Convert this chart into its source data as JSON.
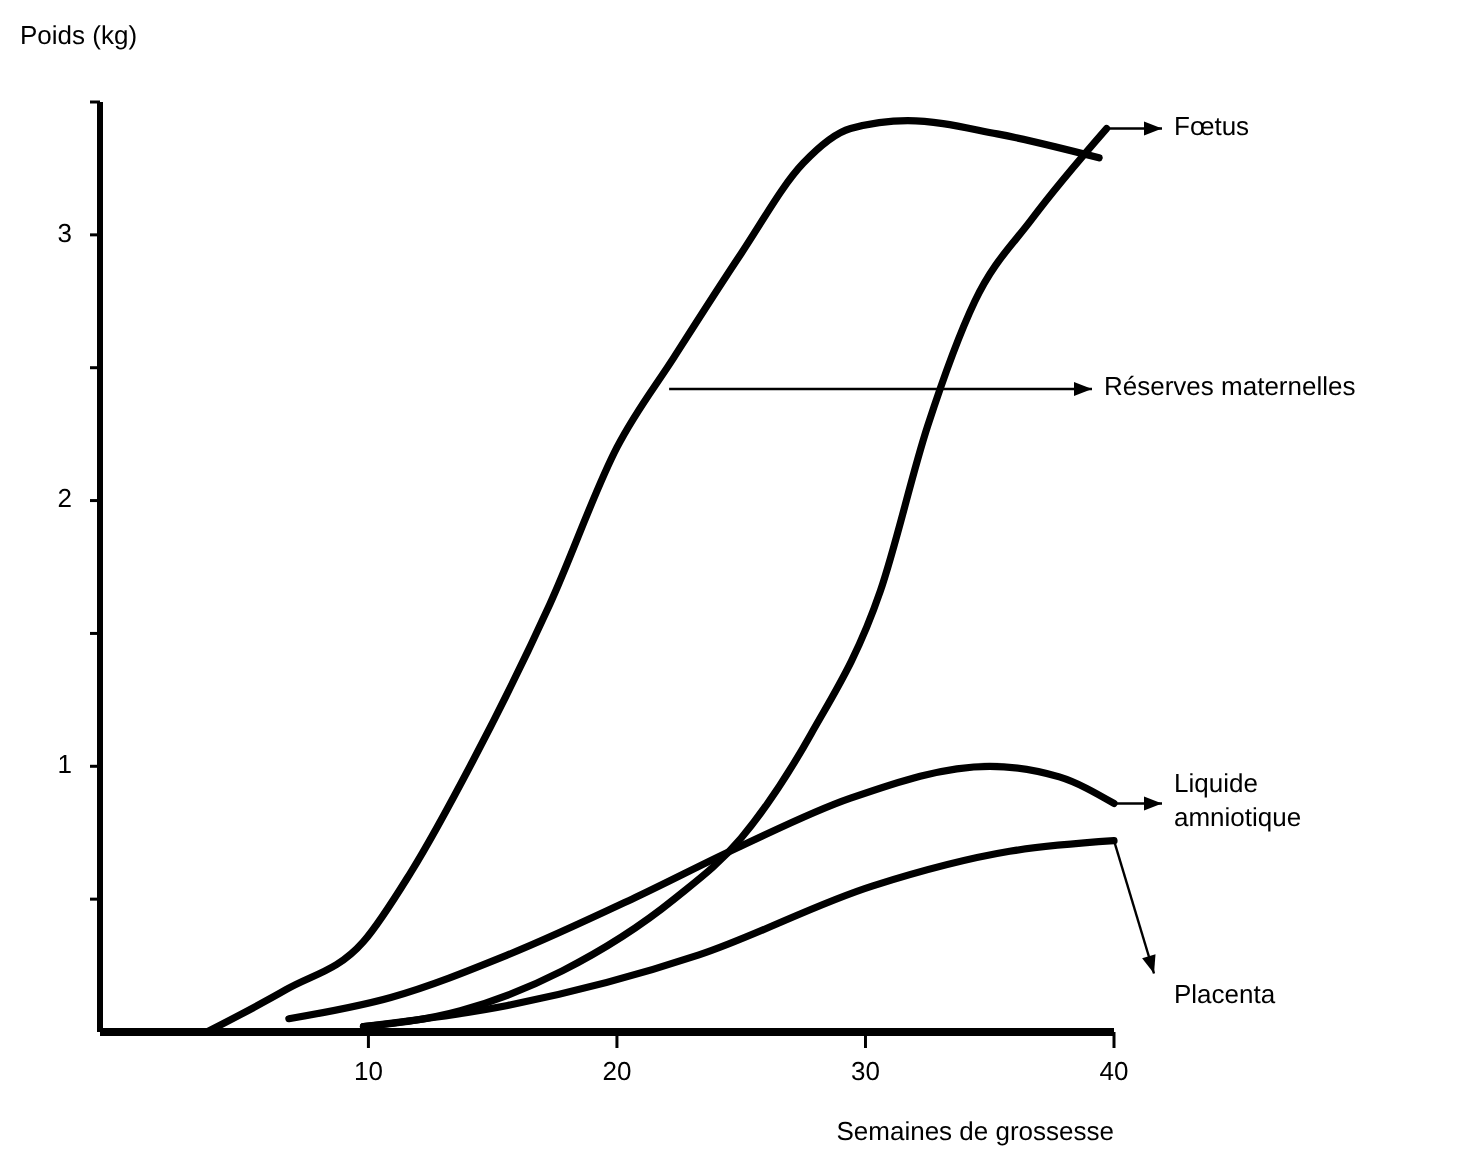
{
  "chart_data": {
    "type": "line",
    "ylabel": "Poids (kg)",
    "xlabel": "Semaines de grossesse",
    "xlim": [
      -0.8,
      40
    ],
    "xticks": [
      10,
      20,
      30,
      40
    ],
    "ylim": [
      0,
      3.5
    ],
    "yticks": [
      {
        "value": 0.5,
        "label": null
      },
      1,
      {
        "value": 1.5,
        "label": null
      },
      2,
      {
        "value": 2.5,
        "label": null
      },
      3,
      {
        "value": 3.5,
        "label": null
      }
    ],
    "grid": false,
    "marker": "none",
    "line_style": "solid",
    "series": [
      {
        "color": "#000000",
        "x": [
          3.5,
          6.7,
          9.8,
          11.7,
          14.2,
          17.3,
          20.0,
          22.3,
          25.0,
          27.5,
          29.4,
          31.7,
          35.3,
          39.4
        ],
        "values": [
          0,
          0.16,
          0.34,
          0.6,
          1.02,
          1.61,
          2.2,
          2.54,
          2.93,
          3.27,
          3.4,
          3.43,
          3.38,
          3.29
        ]
      },
      {
        "color": "#000000",
        "x": [
          9.8,
          13.7,
          17.8,
          22.3,
          25.0,
          27.8,
          30.6,
          32.5,
          34.4,
          36.7,
          39.7
        ],
        "values": [
          0.02,
          0.08,
          0.23,
          0.5,
          0.73,
          1.12,
          1.66,
          2.28,
          2.75,
          3.06,
          3.4
        ]
      },
      {
        "color": "#000000",
        "x": [
          6.8,
          10.9,
          15.6,
          20.6,
          25.0,
          29.4,
          35.0,
          37.8,
          40
        ],
        "values": [
          0.05,
          0.13,
          0.29,
          0.5,
          0.7,
          0.88,
          1.0,
          0.96,
          0.86
        ]
      },
      {
        "color": "#000000",
        "x": [
          9.8,
          15.6,
          23.3,
          30.3,
          35.8,
          40
        ],
        "values": [
          0.02,
          0.1,
          0.29,
          0.55,
          0.68,
          0.72
        ]
      }
    ],
    "annotations": [
      {
        "text": "Fœtus",
        "x": 39.7,
        "y": 3.4
      },
      {
        "text": "Réserves maternelles",
        "x": 22.1,
        "y": 2.42
      },
      {
        "text": "Liquide amniotique",
        "x": 40,
        "y": 0.86
      },
      {
        "text": "Placenta",
        "x": 40,
        "y": 0.72
      }
    ]
  }
}
